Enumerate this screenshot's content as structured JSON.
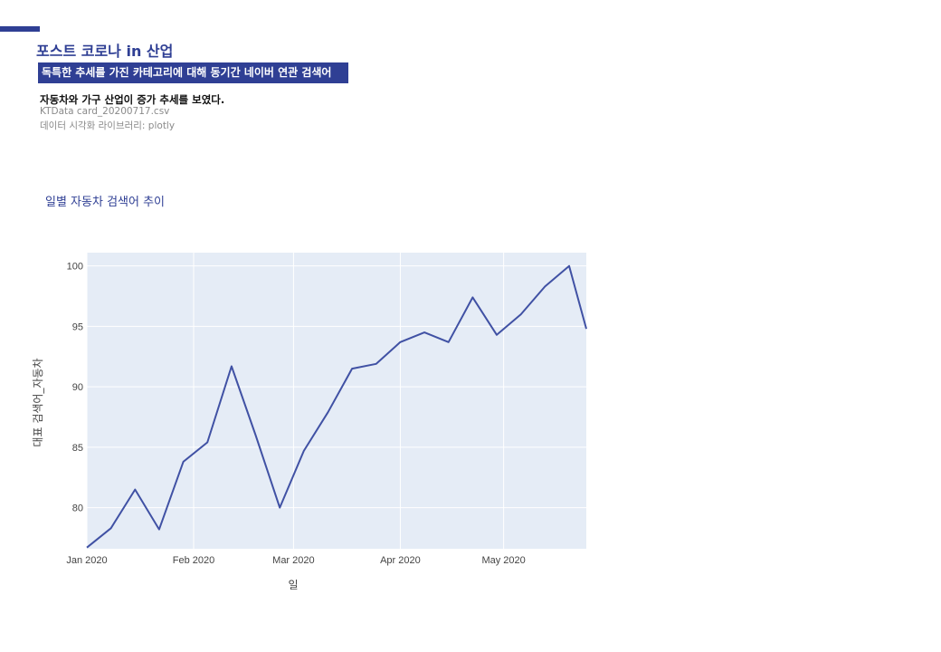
{
  "header": {
    "title": "포스트 코로나 in 산업",
    "subtitle": "독특한 추세를 가진 카테고리에 대해 동기간 네이버 연관 검색어",
    "finding": "자동차와 가구 산업이 증가 추세를 보였다.",
    "source": "KTData card_20200717.csv",
    "library": "데이터 시각화 라이브러리: plotly"
  },
  "colors": {
    "accent": "#2f3f94",
    "plot_bg": "#e5ecf6",
    "line": "#4051a4",
    "grid": "#ffffff"
  },
  "chart_data": {
    "type": "line",
    "title": "일별 자동차 검색어 추이",
    "xlabel": "일",
    "ylabel": "대표 검색어_자동차",
    "x_ticks": [
      {
        "date": "2020-01-01",
        "label": "Jan 2020"
      },
      {
        "date": "2020-02-01",
        "label": "Feb 2020"
      },
      {
        "date": "2020-03-01",
        "label": "Mar 2020"
      },
      {
        "date": "2020-04-01",
        "label": "Apr 2020"
      },
      {
        "date": "2020-05-01",
        "label": "May 2020"
      }
    ],
    "y_ticks": [
      80,
      85,
      90,
      95,
      100
    ],
    "xlim": [
      "2020-01-01",
      "2020-05-25"
    ],
    "ylim": [
      76.6,
      101.1
    ],
    "grid": true,
    "series": [
      {
        "x": [
          "2020-01-01",
          "2020-01-08",
          "2020-01-15",
          "2020-01-22",
          "2020-01-29",
          "2020-02-05",
          "2020-02-12",
          "2020-02-19",
          "2020-02-26",
          "2020-03-04",
          "2020-03-11",
          "2020-03-18",
          "2020-03-25",
          "2020-04-01",
          "2020-04-08",
          "2020-04-15",
          "2020-04-22",
          "2020-04-29",
          "2020-05-06",
          "2020-05-13",
          "2020-05-20",
          "2020-05-25"
        ],
        "values": [
          76.7,
          78.3,
          81.5,
          78.2,
          83.8,
          85.4,
          91.7,
          86.0,
          80.0,
          84.7,
          87.9,
          91.5,
          91.9,
          93.7,
          94.5,
          93.7,
          97.4,
          94.3,
          96.0,
          98.3,
          100.0,
          94.8
        ]
      }
    ]
  }
}
